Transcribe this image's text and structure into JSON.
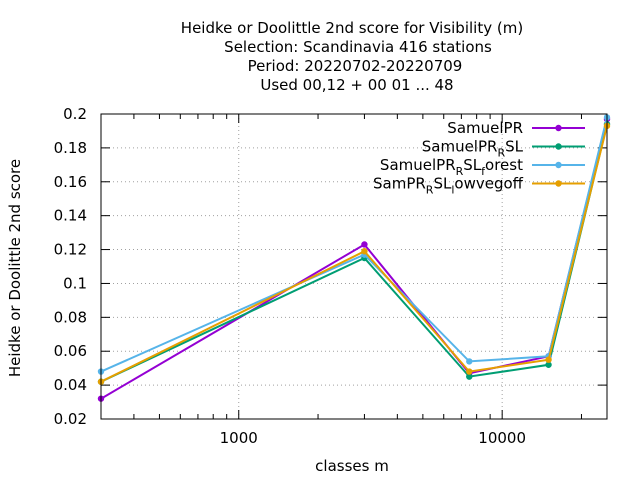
{
  "chart_data": {
    "type": "line",
    "title_lines": [
      "Heidke or Doolittle 2nd score  for Visibility (m)",
      "Selection: Scandinavia    416 stations",
      "Period: 20220702-20220709",
      "Used  00,12  + 00 01 ... 48"
    ],
    "xlabel": "classes m",
    "ylabel": "Heidke or Doolittle 2nd score",
    "x_scale": "log",
    "xlim": [
      300,
      25000
    ],
    "ylim": [
      0.02,
      0.2
    ],
    "x_tick_labels": [
      {
        "value": 1000,
        "label": "1000"
      },
      {
        "value": 10000,
        "label": "10000"
      }
    ],
    "y_ticks": [
      0.02,
      0.04,
      0.06,
      0.08,
      0.1,
      0.12,
      0.14,
      0.16,
      0.18,
      0.2
    ],
    "y_tick_labels": [
      "0.02",
      "0.04",
      "0.06",
      "0.08",
      "0.1",
      "0.12",
      "0.14",
      "0.16",
      "0.18",
      "0.2"
    ],
    "grid": true,
    "legend_position": "top-right",
    "series": [
      {
        "name": "SamuelPR",
        "legend": {
          "base": "SamuelPR",
          "sub": "",
          "tail": "",
          "sub2": "",
          "tail2": ""
        },
        "color": "#9400d3",
        "points": [
          [
            300,
            0.032
          ],
          [
            3000,
            0.123
          ],
          [
            7500,
            0.047
          ],
          [
            15000,
            0.057
          ],
          [
            25000,
            0.197
          ]
        ]
      },
      {
        "name": "SamuelPR_RSL",
        "legend": {
          "base": "SamuelPR",
          "sub": "R",
          "tail": "SL",
          "sub2": "",
          "tail2": ""
        },
        "color": "#009e73",
        "points": [
          [
            300,
            0.042
          ],
          [
            3000,
            0.115
          ],
          [
            7500,
            0.045
          ],
          [
            15000,
            0.052
          ],
          [
            25000,
            0.194
          ]
        ]
      },
      {
        "name": "SamuelPR_RSL_forest",
        "legend": {
          "base": "SamuelPR",
          "sub": "R",
          "tail": "SL",
          "sub2": "f",
          "tail2": "orest"
        },
        "color": "#56b4e9",
        "points": [
          [
            300,
            0.048
          ],
          [
            3000,
            0.117
          ],
          [
            7500,
            0.054
          ],
          [
            15000,
            0.057
          ],
          [
            25000,
            0.198
          ]
        ]
      },
      {
        "name": "SamPR_RSL_lowvegoff",
        "legend": {
          "base": "SamPR",
          "sub": "R",
          "tail": "SL",
          "sub2": "l",
          "tail2": "owvegoff"
        },
        "color": "#e69f00",
        "points": [
          [
            300,
            0.042
          ],
          [
            3000,
            0.119
          ],
          [
            7500,
            0.048
          ],
          [
            15000,
            0.055
          ],
          [
            25000,
            0.193
          ]
        ]
      }
    ]
  }
}
